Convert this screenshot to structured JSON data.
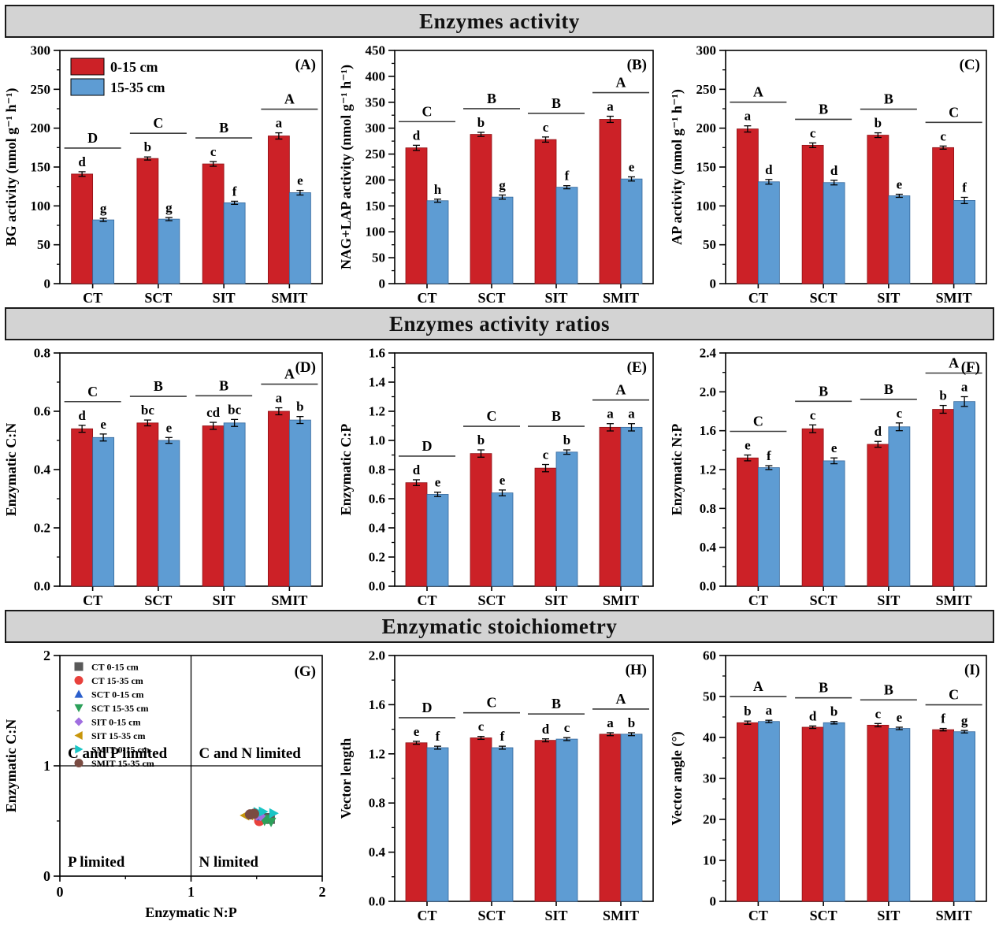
{
  "sections": [
    {
      "title": "Enzymes activity"
    },
    {
      "title": "Enzymes activity ratios"
    },
    {
      "title": "Enzymatic stoichiometry"
    }
  ],
  "legend": {
    "series1_label": "0-15 cm",
    "series2_label": "15-35 cm"
  },
  "colors": {
    "bar_red": "#cc2127",
    "bar_blue": "#5e9cd3",
    "header_bg": "#d3d3d3",
    "axis": "#000000"
  },
  "chart_data": [
    {
      "panel": "(A)",
      "type": "bar",
      "section": "Enzymes activity",
      "ylabel": "BG activity (nmol g⁻¹ h⁻¹)",
      "ylim": [
        0,
        300
      ],
      "ystep": 50,
      "decimals": 0,
      "show_legend": true,
      "categories": [
        "CT",
        "SCT",
        "SIT",
        "SMIT"
      ],
      "group_letters": [
        "D",
        "C",
        "B",
        "A"
      ],
      "series": [
        {
          "name": "0-15 cm",
          "values": [
            141,
            161,
            154,
            190
          ],
          "errors": [
            3,
            2,
            3,
            4
          ],
          "letters": [
            "d",
            "b",
            "c",
            "a"
          ]
        },
        {
          "name": "15-35 cm",
          "values": [
            82,
            83,
            104,
            117
          ],
          "errors": [
            2,
            2,
            2,
            3
          ],
          "letters": [
            "g",
            "g",
            "f",
            "e"
          ]
        }
      ]
    },
    {
      "panel": "(B)",
      "type": "bar",
      "section": "Enzymes activity",
      "ylabel": "NAG+LAP activity (nmol g⁻¹ h⁻¹)",
      "ylim": [
        0,
        450
      ],
      "ystep": 50,
      "decimals": 0,
      "show_legend": false,
      "categories": [
        "CT",
        "SCT",
        "SIT",
        "SMIT"
      ],
      "group_letters": [
        "C",
        "B",
        "B",
        "A"
      ],
      "series": [
        {
          "name": "0-15 cm",
          "values": [
            262,
            288,
            278,
            317
          ],
          "errors": [
            5,
            4,
            5,
            6
          ],
          "letters": [
            "d",
            "b",
            "c",
            "a"
          ]
        },
        {
          "name": "15-35 cm",
          "values": [
            160,
            167,
            186,
            202
          ],
          "errors": [
            3,
            4,
            3,
            4
          ],
          "letters": [
            "h",
            "g",
            "f",
            "e"
          ]
        }
      ]
    },
    {
      "panel": "(C)",
      "type": "bar",
      "section": "Enzymes activity",
      "ylabel": "AP activity (nmol g⁻¹ h⁻¹)",
      "ylim": [
        0,
        300
      ],
      "ystep": 50,
      "decimals": 0,
      "show_legend": false,
      "categories": [
        "CT",
        "SCT",
        "SIT",
        "SMIT"
      ],
      "group_letters": [
        "A",
        "B",
        "B",
        "C"
      ],
      "series": [
        {
          "name": "0-15 cm",
          "values": [
            199,
            178,
            191,
            175
          ],
          "errors": [
            4,
            3,
            3,
            2
          ],
          "letters": [
            "a",
            "c",
            "b",
            "c"
          ]
        },
        {
          "name": "15-35 cm",
          "values": [
            131,
            130,
            113,
            107
          ],
          "errors": [
            3,
            3,
            2,
            4
          ],
          "letters": [
            "d",
            "d",
            "e",
            "f"
          ]
        }
      ]
    },
    {
      "panel": "(D)",
      "type": "bar",
      "section": "Enzymes activity ratios",
      "ylabel": "Enzymatic C:N",
      "ylim": [
        0,
        0.8
      ],
      "ystep": 0.2,
      "decimals": 1,
      "show_legend": false,
      "categories": [
        "CT",
        "SCT",
        "SIT",
        "SMIT"
      ],
      "group_letters": [
        "C",
        "B",
        "B",
        "A"
      ],
      "series": [
        {
          "name": "0-15 cm",
          "values": [
            0.54,
            0.56,
            0.55,
            0.6
          ],
          "errors": [
            0.012,
            0.01,
            0.012,
            0.012
          ],
          "letters": [
            "d",
            "bc",
            "cd",
            "a"
          ]
        },
        {
          "name": "15-35 cm",
          "values": [
            0.51,
            0.5,
            0.56,
            0.57
          ],
          "errors": [
            0.012,
            0.01,
            0.012,
            0.012
          ],
          "letters": [
            "e",
            "e",
            "bc",
            "b"
          ]
        }
      ]
    },
    {
      "panel": "(E)",
      "type": "bar",
      "section": "Enzymes activity ratios",
      "ylabel": "Enzymatic C:P",
      "ylim": [
        0,
        1.6
      ],
      "ystep": 0.2,
      "decimals": 1,
      "show_legend": false,
      "categories": [
        "CT",
        "SCT",
        "SIT",
        "SMIT"
      ],
      "group_letters": [
        "D",
        "C",
        "B",
        "A"
      ],
      "series": [
        {
          "name": "0-15 cm",
          "values": [
            0.71,
            0.91,
            0.81,
            1.09
          ],
          "errors": [
            0.02,
            0.025,
            0.025,
            0.025
          ],
          "letters": [
            "d",
            "b",
            "c",
            "a"
          ]
        },
        {
          "name": "15-35 cm",
          "values": [
            0.63,
            0.64,
            0.92,
            1.09
          ],
          "errors": [
            0.015,
            0.02,
            0.015,
            0.025
          ],
          "letters": [
            "e",
            "e",
            "b",
            "a"
          ]
        }
      ]
    },
    {
      "panel": "(F)",
      "type": "bar",
      "section": "Enzymes activity ratios",
      "ylabel": "Enzymatic N:P",
      "ylim": [
        0,
        2.4
      ],
      "ystep": 0.4,
      "decimals": 1,
      "show_legend": false,
      "categories": [
        "CT",
        "SCT",
        "SIT",
        "SMIT"
      ],
      "group_letters": [
        "C",
        "B",
        "B",
        "A"
      ],
      "series": [
        {
          "name": "0-15 cm",
          "values": [
            1.32,
            1.62,
            1.46,
            1.82
          ],
          "errors": [
            0.03,
            0.04,
            0.03,
            0.04
          ],
          "letters": [
            "e",
            "c",
            "d",
            "b"
          ]
        },
        {
          "name": "15-35 cm",
          "values": [
            1.22,
            1.29,
            1.64,
            1.9
          ],
          "errors": [
            0.02,
            0.03,
            0.04,
            0.05
          ],
          "letters": [
            "f",
            "e",
            "c",
            "a"
          ]
        }
      ]
    },
    {
      "panel": "(G)",
      "type": "scatter",
      "section": "Enzymatic stoichiometry",
      "xlabel": "Enzymatic N:P",
      "ylabel": "Enzymatic C:N",
      "xlim": [
        0,
        2
      ],
      "ylim": [
        0,
        2
      ],
      "xticks": [
        0,
        1,
        2
      ],
      "yticks": [
        0,
        1,
        2
      ],
      "ref_lines": {
        "x": 1,
        "y": 1
      },
      "quadrant_labels": [
        {
          "text": "C and P limited",
          "quad": "top-left"
        },
        {
          "text": "C and N limited",
          "quad": "top-right"
        },
        {
          "text": "P limited",
          "quad": "bottom-left"
        },
        {
          "text": "N limited",
          "quad": "bottom-right"
        }
      ],
      "series": [
        {
          "name": "CT 0-15 cm",
          "marker": "square",
          "color": "#595959",
          "points": [
            [
              1.57,
              0.525
            ],
            [
              1.6,
              0.52
            ]
          ]
        },
        {
          "name": "CT 15-35 cm",
          "marker": "circle",
          "color": "#e8413c",
          "points": [
            [
              1.52,
              0.5
            ]
          ]
        },
        {
          "name": "SCT 0-15 cm",
          "marker": "triangle-up",
          "color": "#2b5fcc",
          "points": [
            [
              1.54,
              0.545
            ]
          ]
        },
        {
          "name": "SCT 15-35 cm",
          "marker": "triangle-down",
          "color": "#2ca05a",
          "points": [
            [
              1.56,
              0.5
            ],
            [
              1.61,
              0.49
            ],
            [
              1.58,
              0.515
            ]
          ]
        },
        {
          "name": "SIT 0-15 cm",
          "marker": "diamond",
          "color": "#a06ee0",
          "points": [
            [
              1.5,
              0.55
            ],
            [
              1.53,
              0.545
            ]
          ]
        },
        {
          "name": "SIT 15-35 cm",
          "marker": "triangle-left",
          "color": "#c8960c",
          "points": [
            [
              1.41,
              0.55
            ],
            [
              1.44,
              0.552
            ]
          ]
        },
        {
          "name": "SMIT 0-15 cm",
          "marker": "triangle-right",
          "color": "#19c5c5",
          "points": [
            [
              1.55,
              0.585
            ],
            [
              1.63,
              0.57
            ],
            [
              1.51,
              0.58
            ]
          ]
        },
        {
          "name": "SMIT 15-35 cm",
          "marker": "circle",
          "color": "#7a4b42",
          "points": [
            [
              1.45,
              0.56
            ],
            [
              1.48,
              0.565
            ]
          ]
        }
      ]
    },
    {
      "panel": "(H)",
      "type": "bar",
      "section": "Enzymatic stoichiometry",
      "ylabel": "Vector length",
      "ylim": [
        0,
        2.0
      ],
      "ystep": 0.4,
      "decimals": 1,
      "show_legend": false,
      "categories": [
        "CT",
        "SCT",
        "SIT",
        "SMIT"
      ],
      "group_letters": [
        "D",
        "C",
        "B",
        "A"
      ],
      "series": [
        {
          "name": "0-15 cm",
          "values": [
            1.29,
            1.33,
            1.31,
            1.36
          ],
          "errors": [
            0.012,
            0.012,
            0.012,
            0.012
          ],
          "letters": [
            "e",
            "c",
            "d",
            "a"
          ]
        },
        {
          "name": "15-35 cm",
          "values": [
            1.25,
            1.25,
            1.32,
            1.36
          ],
          "errors": [
            0.012,
            0.012,
            0.012,
            0.012
          ],
          "letters": [
            "f",
            "f",
            "c",
            "b"
          ]
        }
      ]
    },
    {
      "panel": "(I)",
      "type": "bar",
      "section": "Enzymatic stoichiometry",
      "ylabel": "Vector angle (°)",
      "ylim": [
        0,
        60
      ],
      "ystep": 10,
      "decimals": 0,
      "show_legend": false,
      "categories": [
        "CT",
        "SCT",
        "SIT",
        "SMIT"
      ],
      "group_letters": [
        "A",
        "B",
        "B",
        "C"
      ],
      "series": [
        {
          "name": "0-15 cm",
          "values": [
            43.6,
            42.5,
            43.0,
            41.9
          ],
          "errors": [
            0.4,
            0.3,
            0.4,
            0.3
          ],
          "letters": [
            "b",
            "d",
            "c",
            "f"
          ]
        },
        {
          "name": "15-35 cm",
          "values": [
            43.9,
            43.6,
            42.2,
            41.4
          ],
          "errors": [
            0.3,
            0.3,
            0.3,
            0.3
          ],
          "letters": [
            "a",
            "b",
            "e",
            "g"
          ]
        }
      ]
    }
  ]
}
